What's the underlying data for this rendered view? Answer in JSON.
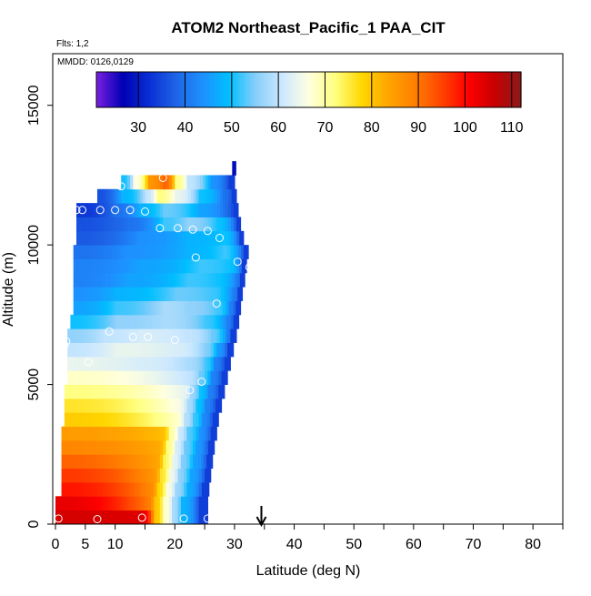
{
  "chart_data": {
    "type": "heatmap",
    "title": "ATOM2 Northeast_Pacific_1 PAA_CIT",
    "subtitle_flights": "Flts: 1,2",
    "subtitle_dates": "MMDD: 0126,0129",
    "xlabel": "Latitude (deg N)",
    "ylabel": "Altitude (m)",
    "xlim": [
      0,
      85
    ],
    "ylim": [
      0,
      17500
    ],
    "x_ticks": [
      0,
      5,
      10,
      20,
      30,
      40,
      50,
      60,
      70,
      80
    ],
    "y_ticks": [
      0,
      5000,
      10000,
      15000
    ],
    "colorbar": {
      "range": [
        21,
        112
      ],
      "ticks": [
        30,
        40,
        50,
        60,
        70,
        80,
        90,
        100,
        110
      ],
      "colors": [
        "#7b1fe0",
        "#0000b4",
        "#0a2fd4",
        "#1e64e6",
        "#1e90ff",
        "#00bfff",
        "#87cefa",
        "#cce8ff",
        "#ffffe0",
        "#ffff80",
        "#ffd700",
        "#ffa500",
        "#ff7f00",
        "#ff4500",
        "#ff0000",
        "#c80000",
        "#8b1a1a"
      ]
    },
    "arrow_latitude": 34.5,
    "profile_levels": [
      {
        "alt": 250,
        "end": 25.5,
        "cells": [
          [
            0,
            105
          ],
          [
            14,
            104
          ],
          [
            16.5,
            80
          ],
          [
            18,
            68
          ],
          [
            19.5,
            58
          ],
          [
            21,
            48
          ],
          [
            24,
            34
          ]
        ]
      },
      {
        "alt": 750,
        "end": 25.5,
        "cells": [
          [
            0,
            103
          ],
          [
            15,
            90
          ],
          [
            16.5,
            80
          ],
          [
            18,
            68
          ],
          [
            19.5,
            58
          ],
          [
            21,
            48
          ],
          [
            24,
            34
          ]
        ]
      },
      {
        "alt": 1250,
        "end": 25.7,
        "cells": [
          [
            1,
            99
          ],
          [
            15.5,
            88
          ],
          [
            17,
            78
          ],
          [
            18.5,
            66
          ],
          [
            20,
            57
          ],
          [
            22,
            47
          ],
          [
            24.5,
            34
          ]
        ]
      },
      {
        "alt": 1750,
        "end": 26,
        "cells": [
          [
            1,
            96
          ],
          [
            16,
            86
          ],
          [
            17.5,
            76
          ],
          [
            19,
            65
          ],
          [
            20.5,
            56
          ],
          [
            22.5,
            46
          ],
          [
            25,
            34
          ]
        ]
      },
      {
        "alt": 2250,
        "end": 26.3,
        "cells": [
          [
            1,
            92
          ],
          [
            16.5,
            84
          ],
          [
            18,
            74
          ],
          [
            19.5,
            64
          ],
          [
            21,
            55
          ],
          [
            23,
            46
          ],
          [
            25.3,
            34
          ]
        ]
      },
      {
        "alt": 2750,
        "end": 26.6,
        "cells": [
          [
            1,
            88
          ],
          [
            17,
            83
          ],
          [
            18.5,
            72
          ],
          [
            20,
            62
          ],
          [
            21.5,
            54
          ],
          [
            23.5,
            45
          ],
          [
            25.6,
            34
          ]
        ]
      },
      {
        "alt": 3250,
        "end": 27,
        "cells": [
          [
            1,
            85
          ],
          [
            17.5,
            81
          ],
          [
            19,
            70
          ],
          [
            20.5,
            61
          ],
          [
            22,
            53
          ],
          [
            24,
            44
          ],
          [
            26,
            34
          ]
        ]
      },
      {
        "alt": 3750,
        "end": 27.3,
        "cells": [
          [
            1.5,
            79
          ],
          [
            20,
            68
          ],
          [
            21.5,
            59
          ],
          [
            23,
            52
          ],
          [
            24.5,
            43
          ],
          [
            26.3,
            34
          ]
        ]
      },
      {
        "alt": 4250,
        "end": 27.8,
        "cells": [
          [
            1.5,
            76
          ],
          [
            20,
            66
          ],
          [
            22,
            58
          ],
          [
            23.5,
            50
          ],
          [
            25,
            42
          ],
          [
            26.8,
            34
          ]
        ]
      },
      {
        "alt": 4750,
        "end": 28.3,
        "cells": [
          [
            1.5,
            72
          ],
          [
            21,
            64
          ],
          [
            22.5,
            57
          ],
          [
            24,
            50
          ],
          [
            25.5,
            42
          ],
          [
            27.3,
            34
          ]
        ]
      },
      {
        "alt": 5250,
        "end": 28.8,
        "cells": [
          [
            2,
            68
          ],
          [
            22,
            60
          ],
          [
            24,
            54
          ],
          [
            26,
            42
          ],
          [
            27.8,
            34
          ]
        ]
      },
      {
        "alt": 5750,
        "end": 29.3,
        "cells": [
          [
            2,
            64
          ],
          [
            14,
            62
          ],
          [
            22,
            58
          ],
          [
            25,
            52
          ],
          [
            26.5,
            42
          ],
          [
            28.3,
            34
          ]
        ]
      },
      {
        "alt": 6250,
        "end": 29.8,
        "cells": [
          [
            2,
            60
          ],
          [
            10,
            64
          ],
          [
            20,
            62
          ],
          [
            25,
            55
          ],
          [
            27,
            45
          ],
          [
            28.8,
            34
          ]
        ]
      },
      {
        "alt": 6750,
        "end": 30.3,
        "cells": [
          [
            2,
            56
          ],
          [
            8,
            60
          ],
          [
            14,
            62
          ],
          [
            22,
            60
          ],
          [
            26,
            54
          ],
          [
            28.5,
            42
          ],
          [
            29.3,
            34
          ]
        ]
      },
      {
        "alt": 7250,
        "end": 30.7,
        "cells": [
          [
            2.5,
            50
          ],
          [
            10,
            56
          ],
          [
            18,
            58
          ],
          [
            25,
            52
          ],
          [
            28.5,
            42
          ],
          [
            29.8,
            34
          ]
        ]
      },
      {
        "alt": 7750,
        "end": 31,
        "cells": [
          [
            3,
            46
          ],
          [
            10,
            52
          ],
          [
            18,
            58
          ],
          [
            22,
            56
          ],
          [
            27,
            52
          ],
          [
            29,
            42
          ],
          [
            30.2,
            34
          ]
        ]
      },
      {
        "alt": 8250,
        "end": 31.3,
        "cells": [
          [
            3,
            44
          ],
          [
            10,
            48
          ],
          [
            20,
            54
          ],
          [
            26,
            52
          ],
          [
            29.5,
            42
          ],
          [
            30.5,
            34
          ]
        ]
      },
      {
        "alt": 8750,
        "end": 31.7,
        "cells": [
          [
            3,
            42
          ],
          [
            12,
            46
          ],
          [
            22,
            52
          ],
          [
            27,
            50
          ],
          [
            30,
            42
          ],
          [
            30.9,
            34
          ]
        ]
      },
      {
        "alt": 9250,
        "end": 32,
        "cells": [
          [
            3,
            42
          ],
          [
            14,
            46
          ],
          [
            24,
            52
          ],
          [
            29,
            50
          ],
          [
            31.2,
            34
          ]
        ]
      },
      {
        "alt": 9750,
        "end": 32.3,
        "cells": [
          [
            3,
            40
          ],
          [
            12,
            44
          ],
          [
            22,
            48
          ],
          [
            28,
            52
          ],
          [
            31.5,
            34
          ]
        ]
      },
      {
        "alt": 10250,
        "end": 31.5,
        "cells": [
          [
            3.5,
            37
          ],
          [
            14,
            44
          ],
          [
            22,
            48
          ],
          [
            28,
            50
          ],
          [
            30.8,
            34
          ]
        ]
      },
      {
        "alt": 10750,
        "end": 31,
        "cells": [
          [
            3.5,
            36
          ],
          [
            12,
            40
          ],
          [
            18,
            52
          ],
          [
            22,
            56
          ],
          [
            27,
            50
          ],
          [
            30.3,
            34
          ]
        ]
      },
      {
        "alt": 11250,
        "end": 30.6,
        "cells": [
          [
            3.5,
            33
          ],
          [
            10,
            40
          ],
          [
            14,
            48
          ],
          [
            18,
            54
          ],
          [
            24,
            46
          ],
          [
            29.8,
            34
          ]
        ]
      },
      {
        "alt": 11750,
        "end": 30.3,
        "cells": [
          [
            7,
            36
          ],
          [
            11,
            48
          ],
          [
            15,
            60
          ],
          [
            17,
            72
          ],
          [
            20,
            64
          ],
          [
            24,
            50
          ],
          [
            28,
            40
          ],
          [
            29.5,
            34
          ]
        ]
      },
      {
        "alt": 12250,
        "end": 30,
        "cells": [
          [
            11,
            50
          ],
          [
            13,
            66
          ],
          [
            15.5,
            86
          ],
          [
            18,
            92
          ],
          [
            20,
            72
          ],
          [
            22,
            60
          ],
          [
            26,
            44
          ],
          [
            29,
            34
          ]
        ]
      },
      {
        "alt": 12750,
        "end": 30.2,
        "cells": [
          [
            29.6,
            28
          ]
        ]
      }
    ],
    "observations": [
      [
        0.5,
        200
      ],
      [
        7,
        180
      ],
      [
        14.5,
        230
      ],
      [
        21.5,
        200
      ],
      [
        25.5,
        200
      ],
      [
        22.5,
        4800
      ],
      [
        24.5,
        5100
      ],
      [
        5.5,
        5800
      ],
      [
        1.5,
        6400
      ],
      [
        1.8,
        6550
      ],
      [
        9,
        6900
      ],
      [
        13,
        6700
      ],
      [
        15.5,
        6700
      ],
      [
        20,
        6600
      ],
      [
        27,
        7900
      ],
      [
        23.5,
        9550
      ],
      [
        30.5,
        9400
      ],
      [
        32.5,
        9200
      ],
      [
        17.5,
        10600
      ],
      [
        20.5,
        10600
      ],
      [
        23,
        10550
      ],
      [
        25.5,
        10500
      ],
      [
        27.5,
        10250
      ],
      [
        3.5,
        11250
      ],
      [
        4.5,
        11250
      ],
      [
        7.5,
        11250
      ],
      [
        10,
        11250
      ],
      [
        12.5,
        11250
      ],
      [
        15,
        11200
      ],
      [
        11,
        12100
      ],
      [
        18,
        12400
      ]
    ]
  }
}
